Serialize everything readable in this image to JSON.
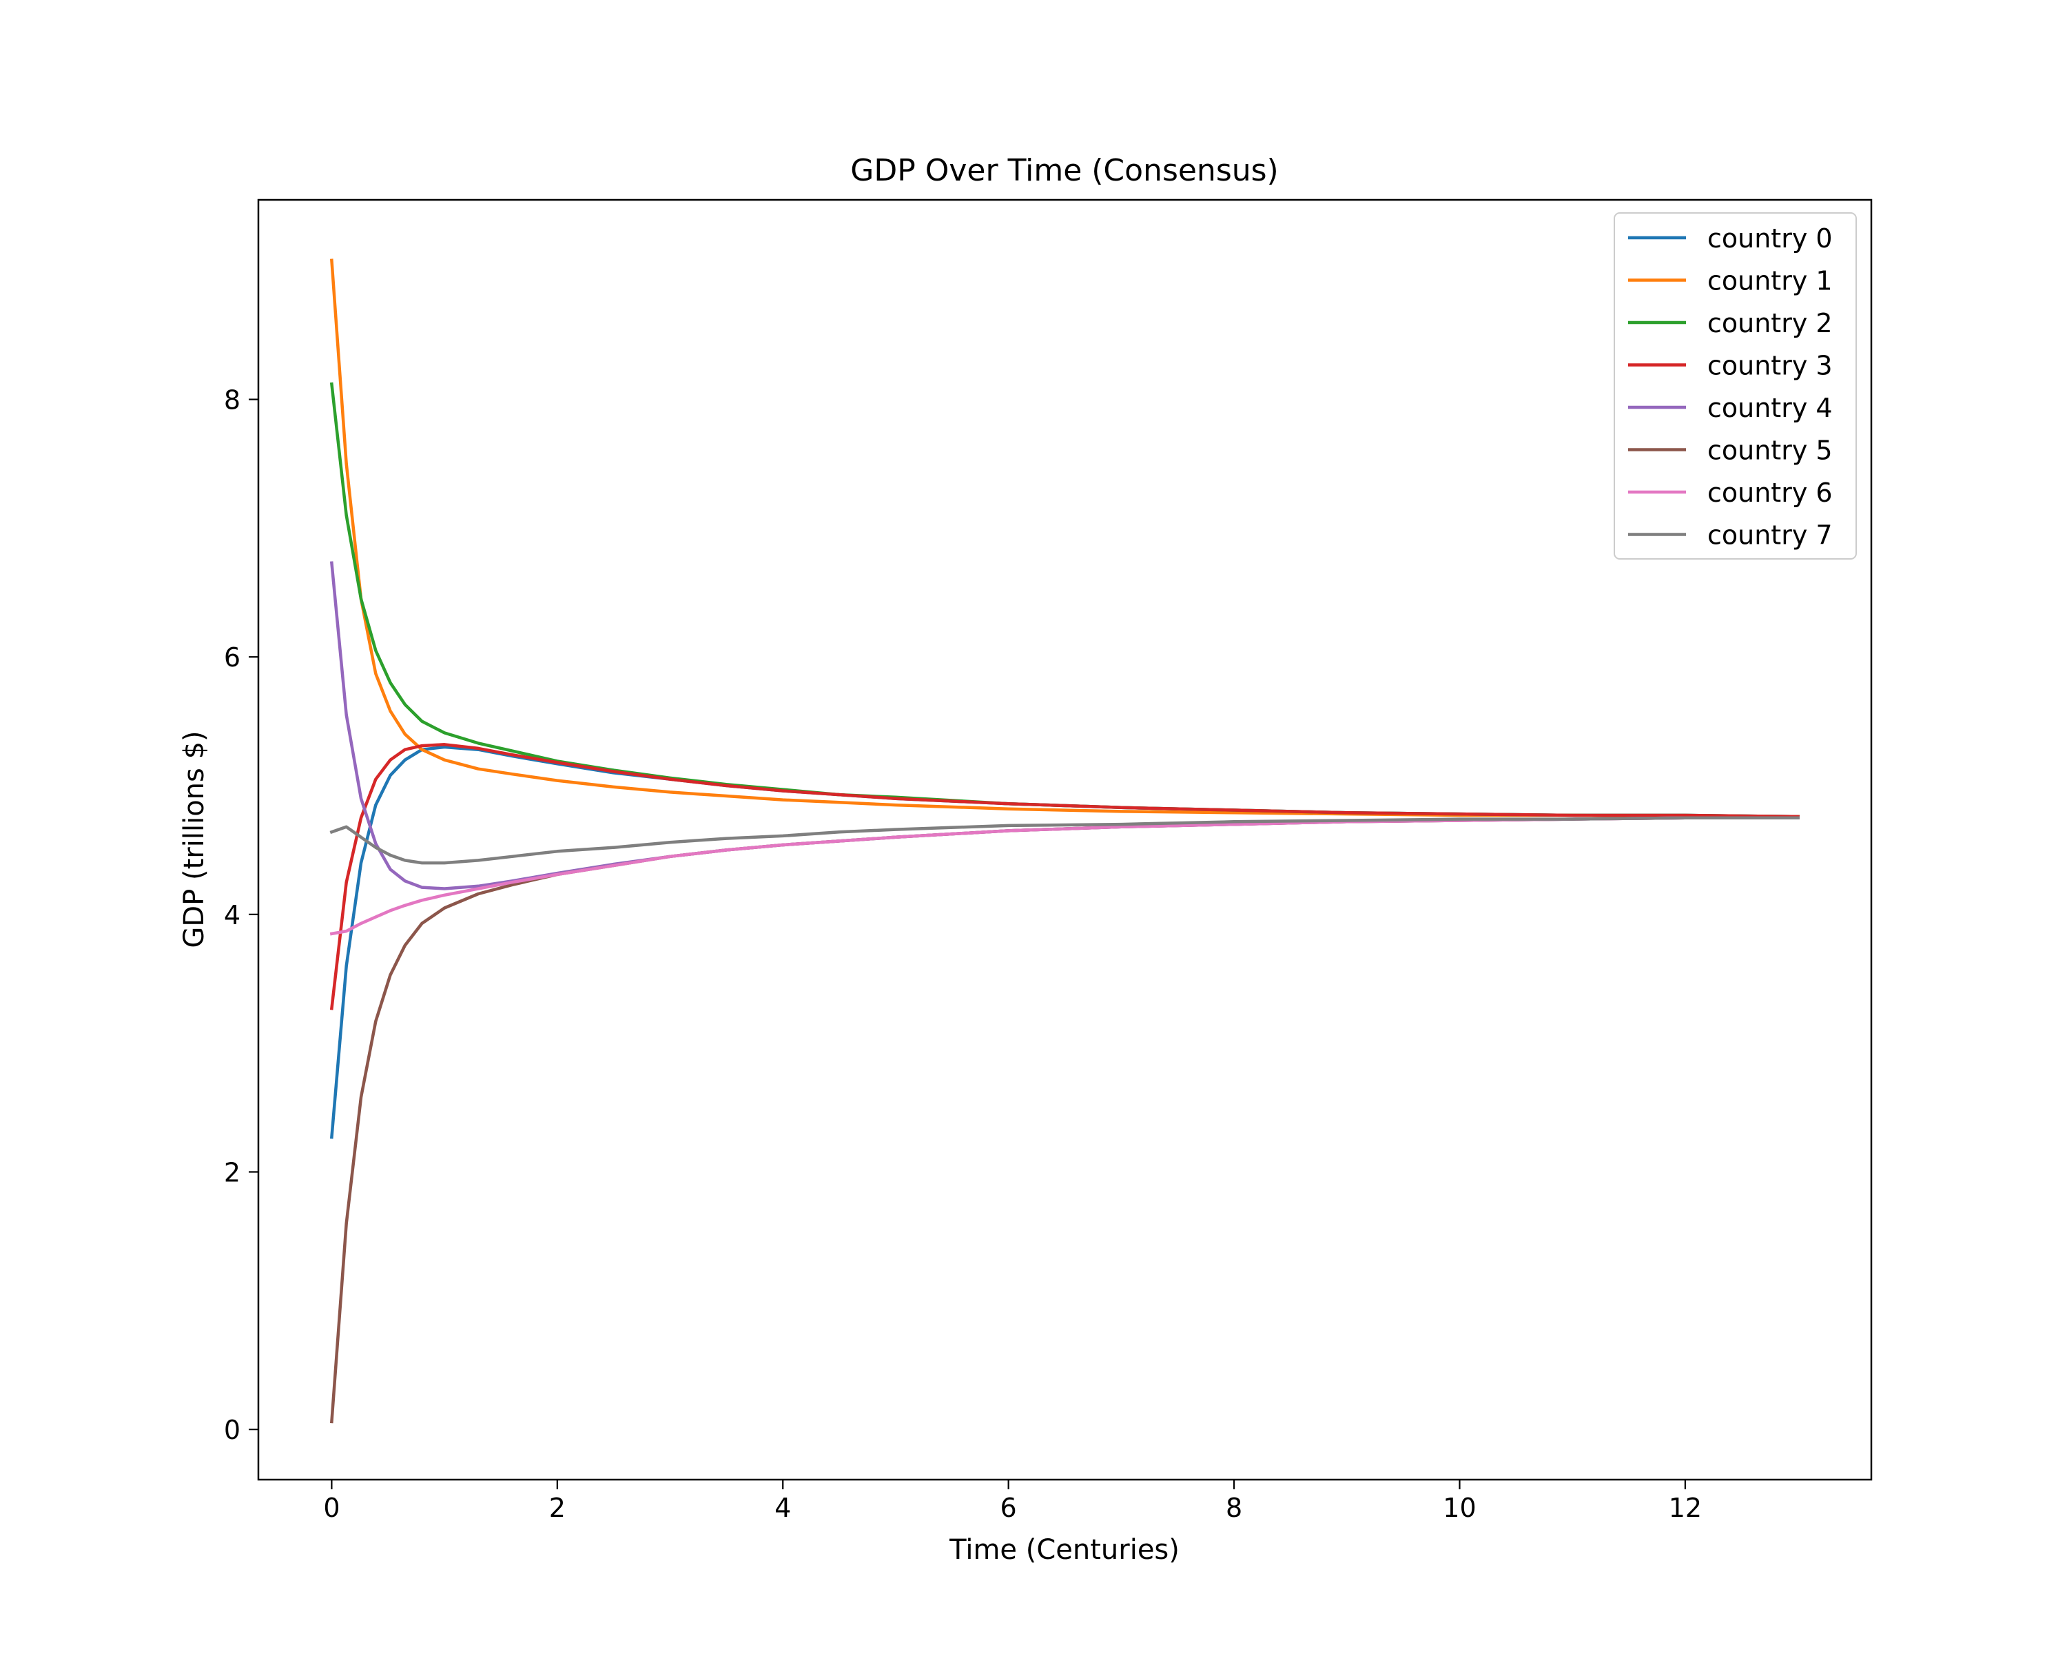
{
  "chart_data": {
    "type": "line",
    "title": "GDP Over Time (Consensus)",
    "xlabel": "Time (Centuries)",
    "ylabel": "GDP (trillions $)",
    "xlim": [
      -0.65,
      13.65
    ],
    "ylim": [
      -0.39,
      9.55
    ],
    "xticks": [
      0,
      2,
      4,
      6,
      8,
      10,
      12
    ],
    "yticks": [
      0,
      2,
      4,
      6,
      8
    ],
    "grid": false,
    "legend_position": "top-right",
    "series": [
      {
        "name": "country 0",
        "color": "#1f77b4",
        "points": [
          [
            0,
            2.27
          ],
          [
            0.13,
            3.6
          ],
          [
            0.26,
            4.4
          ],
          [
            0.39,
            4.85
          ],
          [
            0.52,
            5.08
          ],
          [
            0.65,
            5.2
          ],
          [
            0.8,
            5.28
          ],
          [
            1.0,
            5.3
          ],
          [
            1.3,
            5.28
          ],
          [
            1.6,
            5.23
          ],
          [
            2.0,
            5.17
          ],
          [
            2.5,
            5.1
          ],
          [
            3.0,
            5.05
          ],
          [
            3.5,
            5.0
          ],
          [
            4.0,
            4.96
          ],
          [
            4.5,
            4.93
          ],
          [
            5.0,
            4.9
          ],
          [
            6.0,
            4.86
          ],
          [
            7.0,
            4.83
          ],
          [
            8.0,
            4.81
          ],
          [
            9.0,
            4.79
          ],
          [
            10.0,
            4.78
          ],
          [
            11.0,
            4.77
          ],
          [
            12.0,
            4.77
          ],
          [
            13.0,
            4.76
          ]
        ]
      },
      {
        "name": "country 1",
        "color": "#ff7f0e",
        "points": [
          [
            0,
            9.08
          ],
          [
            0.13,
            7.5
          ],
          [
            0.26,
            6.45
          ],
          [
            0.39,
            5.87
          ],
          [
            0.52,
            5.58
          ],
          [
            0.65,
            5.4
          ],
          [
            0.8,
            5.28
          ],
          [
            1.0,
            5.2
          ],
          [
            1.3,
            5.13
          ],
          [
            1.6,
            5.09
          ],
          [
            2.0,
            5.04
          ],
          [
            2.5,
            4.99
          ],
          [
            3.0,
            4.95
          ],
          [
            3.5,
            4.92
          ],
          [
            4.0,
            4.89
          ],
          [
            4.5,
            4.87
          ],
          [
            5.0,
            4.85
          ],
          [
            6.0,
            4.82
          ],
          [
            7.0,
            4.8
          ],
          [
            8.0,
            4.79
          ],
          [
            9.0,
            4.78
          ],
          [
            10.0,
            4.77
          ],
          [
            11.0,
            4.77
          ],
          [
            12.0,
            4.76
          ],
          [
            13.0,
            4.76
          ]
        ]
      },
      {
        "name": "country 2",
        "color": "#2ca02c",
        "points": [
          [
            0,
            8.12
          ],
          [
            0.13,
            7.1
          ],
          [
            0.26,
            6.45
          ],
          [
            0.39,
            6.05
          ],
          [
            0.52,
            5.8
          ],
          [
            0.65,
            5.63
          ],
          [
            0.8,
            5.5
          ],
          [
            1.0,
            5.41
          ],
          [
            1.3,
            5.33
          ],
          [
            1.6,
            5.27
          ],
          [
            2.0,
            5.19
          ],
          [
            2.5,
            5.12
          ],
          [
            3.0,
            5.06
          ],
          [
            3.5,
            5.01
          ],
          [
            4.0,
            4.97
          ],
          [
            4.5,
            4.93
          ],
          [
            5.0,
            4.91
          ],
          [
            6.0,
            4.86
          ],
          [
            7.0,
            4.83
          ],
          [
            8.0,
            4.81
          ],
          [
            9.0,
            4.79
          ],
          [
            10.0,
            4.78
          ],
          [
            11.0,
            4.77
          ],
          [
            12.0,
            4.77
          ],
          [
            13.0,
            4.76
          ]
        ]
      },
      {
        "name": "country 3",
        "color": "#d62728",
        "points": [
          [
            0,
            3.27
          ],
          [
            0.13,
            4.25
          ],
          [
            0.26,
            4.75
          ],
          [
            0.39,
            5.05
          ],
          [
            0.52,
            5.2
          ],
          [
            0.65,
            5.28
          ],
          [
            0.8,
            5.31
          ],
          [
            1.0,
            5.32
          ],
          [
            1.3,
            5.29
          ],
          [
            1.6,
            5.24
          ],
          [
            2.0,
            5.18
          ],
          [
            2.5,
            5.11
          ],
          [
            3.0,
            5.05
          ],
          [
            3.5,
            5.0
          ],
          [
            4.0,
            4.96
          ],
          [
            4.5,
            4.93
          ],
          [
            5.0,
            4.9
          ],
          [
            6.0,
            4.86
          ],
          [
            7.0,
            4.83
          ],
          [
            8.0,
            4.81
          ],
          [
            9.0,
            4.79
          ],
          [
            10.0,
            4.78
          ],
          [
            11.0,
            4.77
          ],
          [
            12.0,
            4.77
          ],
          [
            13.0,
            4.76
          ]
        ]
      },
      {
        "name": "country 4",
        "color": "#9467bd",
        "points": [
          [
            0,
            6.73
          ],
          [
            0.13,
            5.55
          ],
          [
            0.26,
            4.9
          ],
          [
            0.39,
            4.55
          ],
          [
            0.52,
            4.35
          ],
          [
            0.65,
            4.26
          ],
          [
            0.8,
            4.21
          ],
          [
            1.0,
            4.2
          ],
          [
            1.3,
            4.22
          ],
          [
            1.6,
            4.26
          ],
          [
            2.0,
            4.32
          ],
          [
            2.5,
            4.39
          ],
          [
            3.0,
            4.45
          ],
          [
            3.5,
            4.5
          ],
          [
            4.0,
            4.54
          ],
          [
            4.5,
            4.57
          ],
          [
            5.0,
            4.6
          ],
          [
            6.0,
            4.65
          ],
          [
            7.0,
            4.68
          ],
          [
            8.0,
            4.7
          ],
          [
            9.0,
            4.72
          ],
          [
            10.0,
            4.73
          ],
          [
            11.0,
            4.74
          ],
          [
            12.0,
            4.75
          ],
          [
            13.0,
            4.75
          ]
        ]
      },
      {
        "name": "country 5",
        "color": "#8c564b",
        "points": [
          [
            0,
            0.06
          ],
          [
            0.13,
            1.6
          ],
          [
            0.26,
            2.58
          ],
          [
            0.39,
            3.17
          ],
          [
            0.52,
            3.53
          ],
          [
            0.65,
            3.76
          ],
          [
            0.8,
            3.93
          ],
          [
            1.0,
            4.05
          ],
          [
            1.3,
            4.16
          ],
          [
            1.6,
            4.23
          ],
          [
            2.0,
            4.31
          ],
          [
            2.5,
            4.38
          ],
          [
            3.0,
            4.45
          ],
          [
            3.5,
            4.5
          ],
          [
            4.0,
            4.54
          ],
          [
            4.5,
            4.57
          ],
          [
            5.0,
            4.6
          ],
          [
            6.0,
            4.65
          ],
          [
            7.0,
            4.68
          ],
          [
            8.0,
            4.7
          ],
          [
            9.0,
            4.72
          ],
          [
            10.0,
            4.73
          ],
          [
            11.0,
            4.74
          ],
          [
            12.0,
            4.75
          ],
          [
            13.0,
            4.75
          ]
        ]
      },
      {
        "name": "country 6",
        "color": "#e377c2",
        "points": [
          [
            0,
            3.85
          ],
          [
            0.13,
            3.87
          ],
          [
            0.26,
            3.93
          ],
          [
            0.39,
            3.98
          ],
          [
            0.52,
            4.03
          ],
          [
            0.65,
            4.07
          ],
          [
            0.8,
            4.11
          ],
          [
            1.0,
            4.15
          ],
          [
            1.3,
            4.2
          ],
          [
            1.6,
            4.25
          ],
          [
            2.0,
            4.31
          ],
          [
            2.5,
            4.38
          ],
          [
            3.0,
            4.45
          ],
          [
            3.5,
            4.5
          ],
          [
            4.0,
            4.54
          ],
          [
            4.5,
            4.57
          ],
          [
            5.0,
            4.6
          ],
          [
            6.0,
            4.65
          ],
          [
            7.0,
            4.68
          ],
          [
            8.0,
            4.7
          ],
          [
            9.0,
            4.72
          ],
          [
            10.0,
            4.73
          ],
          [
            11.0,
            4.74
          ],
          [
            12.0,
            4.75
          ],
          [
            13.0,
            4.75
          ]
        ]
      },
      {
        "name": "country 7",
        "color": "#7f7f7f",
        "points": [
          [
            0,
            4.64
          ],
          [
            0.13,
            4.68
          ],
          [
            0.26,
            4.6
          ],
          [
            0.39,
            4.52
          ],
          [
            0.52,
            4.46
          ],
          [
            0.65,
            4.42
          ],
          [
            0.8,
            4.4
          ],
          [
            1.0,
            4.4
          ],
          [
            1.3,
            4.42
          ],
          [
            1.6,
            4.45
          ],
          [
            2.0,
            4.49
          ],
          [
            2.5,
            4.52
          ],
          [
            3.0,
            4.56
          ],
          [
            3.5,
            4.59
          ],
          [
            4.0,
            4.61
          ],
          [
            4.5,
            4.64
          ],
          [
            5.0,
            4.66
          ],
          [
            6.0,
            4.69
          ],
          [
            7.0,
            4.7
          ],
          [
            8.0,
            4.72
          ],
          [
            9.0,
            4.73
          ],
          [
            10.0,
            4.74
          ],
          [
            11.0,
            4.74
          ],
          [
            12.0,
            4.75
          ],
          [
            13.0,
            4.75
          ]
        ]
      }
    ]
  }
}
